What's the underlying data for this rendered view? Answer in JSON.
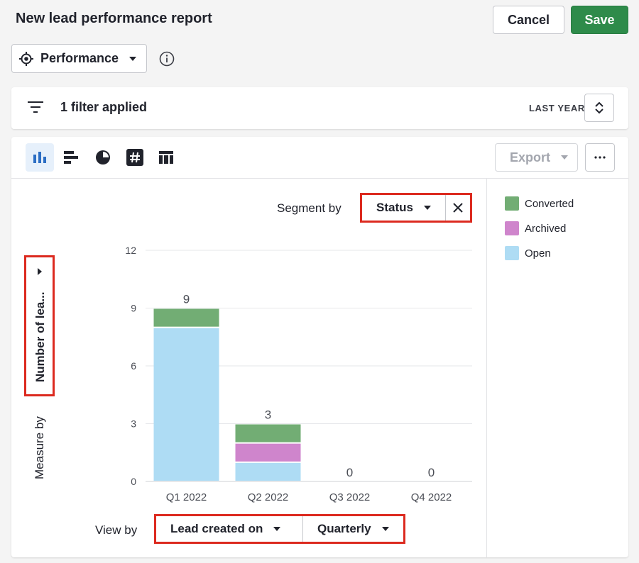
{
  "header": {
    "title": "New lead performance report",
    "cancel_label": "Cancel",
    "save_label": "Save",
    "save_color": "#2e8b4a"
  },
  "report_type": {
    "label": "Performance",
    "icon": "target-icon"
  },
  "filter_bar": {
    "filter_text": "1 filter applied",
    "period_label": "LAST YEAR"
  },
  "toolbar": {
    "chart_types": [
      "column-chart-icon",
      "bar-chart-icon",
      "pie-chart-icon",
      "number-icon",
      "table-icon"
    ],
    "active_chart_type": "column-chart-icon",
    "export_label": "Export"
  },
  "controls": {
    "segment_by_label": "Segment by",
    "segment_by_value": "Status",
    "measure_by_label": "Measure by",
    "measure_by_value": "Number of lea...",
    "view_by_label": "View by",
    "view_by_value": "Lead created on",
    "interval_value": "Quarterly",
    "highlight_color": "#dc2a1f"
  },
  "legend": [
    {
      "label": "Converted",
      "color": "#72ad74"
    },
    {
      "label": "Archived",
      "color": "#cf85cc"
    },
    {
      "label": "Open",
      "color": "#aedcf4"
    }
  ],
  "chart_data": {
    "type": "bar",
    "stacked": true,
    "categories": [
      "Q1 2022",
      "Q2 2022",
      "Q3 2022",
      "Q4 2022"
    ],
    "series": [
      {
        "name": "Open",
        "values": [
          8,
          1,
          0,
          0
        ],
        "color": "#aedcf4"
      },
      {
        "name": "Archived",
        "values": [
          0,
          1,
          0,
          0
        ],
        "color": "#cf85cc"
      },
      {
        "name": "Converted",
        "values": [
          1,
          1,
          0,
          0
        ],
        "color": "#72ad74"
      }
    ],
    "totals": [
      9,
      3,
      0,
      0
    ],
    "yticks": [
      0,
      3,
      6,
      9,
      12
    ],
    "ylim": [
      0,
      12
    ],
    "grid": true
  }
}
